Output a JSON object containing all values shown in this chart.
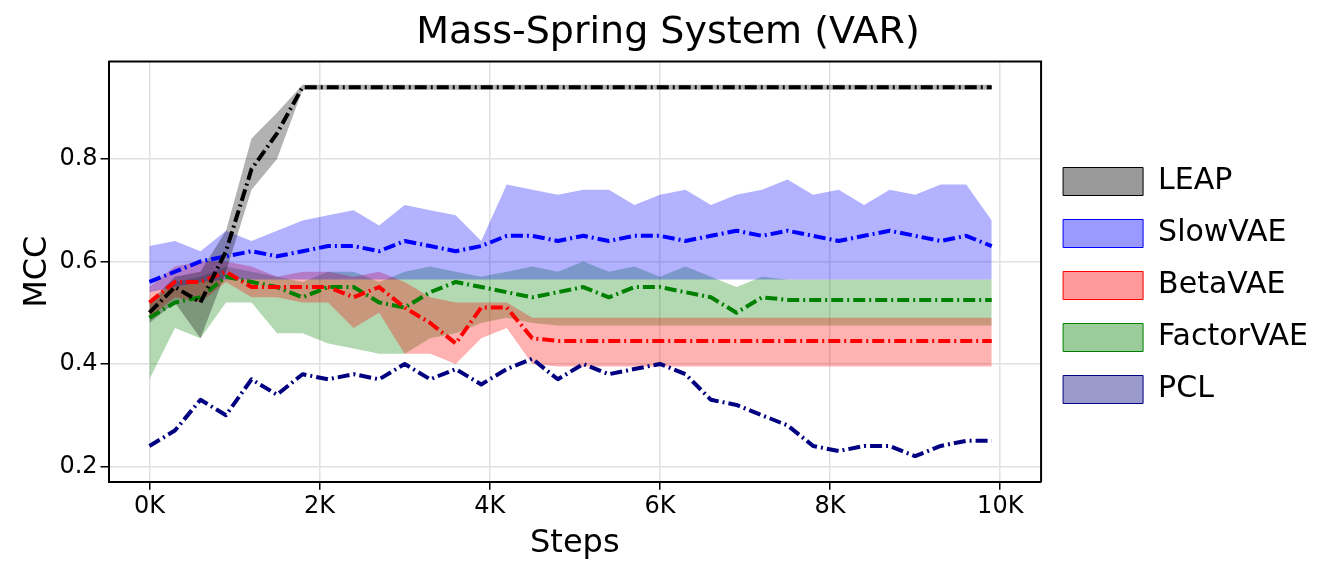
{
  "chart_data": {
    "type": "line",
    "title": "Mass-Spring System (VAR)",
    "xlabel": "Steps",
    "ylabel": "MCC",
    "x": [
      0,
      300,
      600,
      900,
      1200,
      1500,
      1800,
      2100,
      2400,
      2700,
      3000,
      3300,
      3600,
      3900,
      4200,
      4500,
      4800,
      5100,
      5400,
      5700,
      6000,
      6300,
      6600,
      6900,
      7200,
      7500,
      7800,
      8100,
      8400,
      8700,
      9000,
      9300,
      9600,
      9900
    ],
    "xlim": [
      -480,
      10480
    ],
    "xticks": [
      {
        "value": 0,
        "label": "0K"
      },
      {
        "value": 2000,
        "label": "2K"
      },
      {
        "value": 4000,
        "label": "4K"
      },
      {
        "value": 6000,
        "label": "6K"
      },
      {
        "value": 8000,
        "label": "8K"
      },
      {
        "value": 10000,
        "label": "10K"
      }
    ],
    "ylim": [
      0.17,
      0.99
    ],
    "yticks": [
      0.2,
      0.4,
      0.6,
      0.8
    ],
    "grid": true,
    "legend": "right",
    "line_style": "dashed",
    "marker": "none",
    "series": [
      {
        "name": "LEAP",
        "color": "#000000",
        "values": [
          0.5,
          0.55,
          0.52,
          0.62,
          0.78,
          0.85,
          0.94,
          0.94,
          0.94,
          0.94,
          0.94,
          0.94,
          0.94,
          0.94,
          0.94,
          0.94,
          0.94,
          0.94,
          0.94,
          0.94,
          0.94,
          0.94,
          0.94,
          0.94,
          0.94,
          0.94,
          0.94,
          0.94,
          0.94,
          0.94,
          0.94,
          0.94,
          0.94,
          0.94
        ],
        "lower": [
          0.48,
          0.52,
          0.45,
          0.58,
          0.74,
          0.8,
          0.935,
          0.935,
          0.935,
          0.935,
          0.935,
          0.935,
          0.935,
          0.935,
          0.935,
          0.935,
          0.935,
          0.935,
          0.935,
          0.935,
          0.935,
          0.935,
          0.935,
          0.935,
          0.935,
          0.935,
          0.935,
          0.935,
          0.935,
          0.935,
          0.935,
          0.935,
          0.935,
          0.935
        ],
        "upper": [
          0.52,
          0.57,
          0.58,
          0.66,
          0.84,
          0.89,
          0.945,
          0.945,
          0.945,
          0.945,
          0.945,
          0.945,
          0.945,
          0.945,
          0.945,
          0.945,
          0.945,
          0.945,
          0.945,
          0.945,
          0.945,
          0.945,
          0.945,
          0.945,
          0.945,
          0.945,
          0.945,
          0.945,
          0.945,
          0.945,
          0.945,
          0.945,
          0.945,
          0.945
        ]
      },
      {
        "name": "SlowVAE",
        "color": "#0000ff",
        "values": [
          0.56,
          0.58,
          0.6,
          0.61,
          0.62,
          0.61,
          0.62,
          0.63,
          0.63,
          0.62,
          0.64,
          0.63,
          0.62,
          0.63,
          0.65,
          0.65,
          0.64,
          0.65,
          0.64,
          0.65,
          0.65,
          0.64,
          0.65,
          0.66,
          0.65,
          0.66,
          0.65,
          0.64,
          0.65,
          0.66,
          0.65,
          0.64,
          0.65,
          0.63
        ],
        "lower": [
          0.54,
          0.55,
          0.56,
          0.565,
          0.565,
          0.565,
          0.565,
          0.565,
          0.565,
          0.565,
          0.565,
          0.565,
          0.565,
          0.565,
          0.565,
          0.565,
          0.565,
          0.565,
          0.565,
          0.565,
          0.565,
          0.565,
          0.565,
          0.565,
          0.565,
          0.565,
          0.565,
          0.565,
          0.565,
          0.565,
          0.565,
          0.565,
          0.565,
          0.565
        ],
        "upper": [
          0.63,
          0.64,
          0.62,
          0.66,
          0.64,
          0.66,
          0.68,
          0.69,
          0.7,
          0.67,
          0.71,
          0.7,
          0.69,
          0.64,
          0.75,
          0.74,
          0.73,
          0.74,
          0.74,
          0.71,
          0.73,
          0.74,
          0.71,
          0.73,
          0.74,
          0.76,
          0.73,
          0.74,
          0.71,
          0.74,
          0.73,
          0.75,
          0.75,
          0.68
        ]
      },
      {
        "name": "BetaVAE",
        "color": "#ff0000",
        "values": [
          0.52,
          0.56,
          0.56,
          0.58,
          0.55,
          0.55,
          0.55,
          0.55,
          0.53,
          0.55,
          0.51,
          0.48,
          0.44,
          0.51,
          0.51,
          0.45,
          0.445,
          0.445,
          0.445,
          0.445,
          0.445,
          0.445,
          0.445,
          0.445,
          0.445,
          0.445,
          0.445,
          0.445,
          0.445,
          0.445,
          0.445,
          0.445,
          0.445,
          0.445
        ],
        "lower": [
          0.49,
          0.53,
          0.52,
          0.56,
          0.53,
          0.53,
          0.52,
          0.52,
          0.47,
          0.5,
          0.42,
          0.42,
          0.4,
          0.45,
          0.47,
          0.4,
          0.395,
          0.395,
          0.395,
          0.395,
          0.395,
          0.395,
          0.395,
          0.395,
          0.395,
          0.395,
          0.395,
          0.395,
          0.395,
          0.395,
          0.395,
          0.395,
          0.395,
          0.395
        ],
        "upper": [
          0.55,
          0.59,
          0.6,
          0.6,
          0.59,
          0.57,
          0.58,
          0.58,
          0.57,
          0.58,
          0.56,
          0.53,
          0.52,
          0.52,
          0.52,
          0.49,
          0.49,
          0.49,
          0.49,
          0.49,
          0.49,
          0.49,
          0.49,
          0.49,
          0.49,
          0.49,
          0.49,
          0.49,
          0.49,
          0.49,
          0.49,
          0.49,
          0.49,
          0.49
        ]
      },
      {
        "name": "FactorVAE",
        "color": "#008000",
        "values": [
          0.49,
          0.52,
          0.53,
          0.57,
          0.56,
          0.55,
          0.53,
          0.55,
          0.55,
          0.52,
          0.51,
          0.54,
          0.56,
          0.55,
          0.54,
          0.53,
          0.54,
          0.55,
          0.53,
          0.55,
          0.55,
          0.54,
          0.53,
          0.5,
          0.53,
          0.525,
          0.525,
          0.525,
          0.525,
          0.525,
          0.525,
          0.525,
          0.525,
          0.525
        ],
        "lower": [
          0.37,
          0.47,
          0.45,
          0.52,
          0.52,
          0.46,
          0.46,
          0.44,
          0.43,
          0.42,
          0.42,
          0.45,
          0.46,
          0.48,
          0.49,
          0.48,
          0.475,
          0.475,
          0.475,
          0.475,
          0.475,
          0.475,
          0.475,
          0.475,
          0.475,
          0.475,
          0.475,
          0.475,
          0.475,
          0.475,
          0.475,
          0.475,
          0.475,
          0.475
        ],
        "upper": [
          0.52,
          0.56,
          0.57,
          0.59,
          0.58,
          0.57,
          0.56,
          0.58,
          0.58,
          0.56,
          0.58,
          0.59,
          0.58,
          0.57,
          0.58,
          0.59,
          0.58,
          0.6,
          0.58,
          0.59,
          0.57,
          0.59,
          0.57,
          0.55,
          0.57,
          0.565,
          0.565,
          0.565,
          0.565,
          0.565,
          0.565,
          0.565,
          0.565,
          0.565
        ]
      },
      {
        "name": "PCL",
        "color": "#000080",
        "values": [
          0.24,
          0.27,
          0.33,
          0.3,
          0.37,
          0.34,
          0.38,
          0.37,
          0.38,
          0.37,
          0.4,
          0.37,
          0.39,
          0.36,
          0.39,
          0.41,
          0.37,
          0.4,
          0.38,
          0.39,
          0.4,
          0.38,
          0.33,
          0.32,
          0.3,
          0.28,
          0.24,
          0.23,
          0.24,
          0.24,
          0.22,
          0.24,
          0.25,
          0.25
        ]
      }
    ]
  }
}
